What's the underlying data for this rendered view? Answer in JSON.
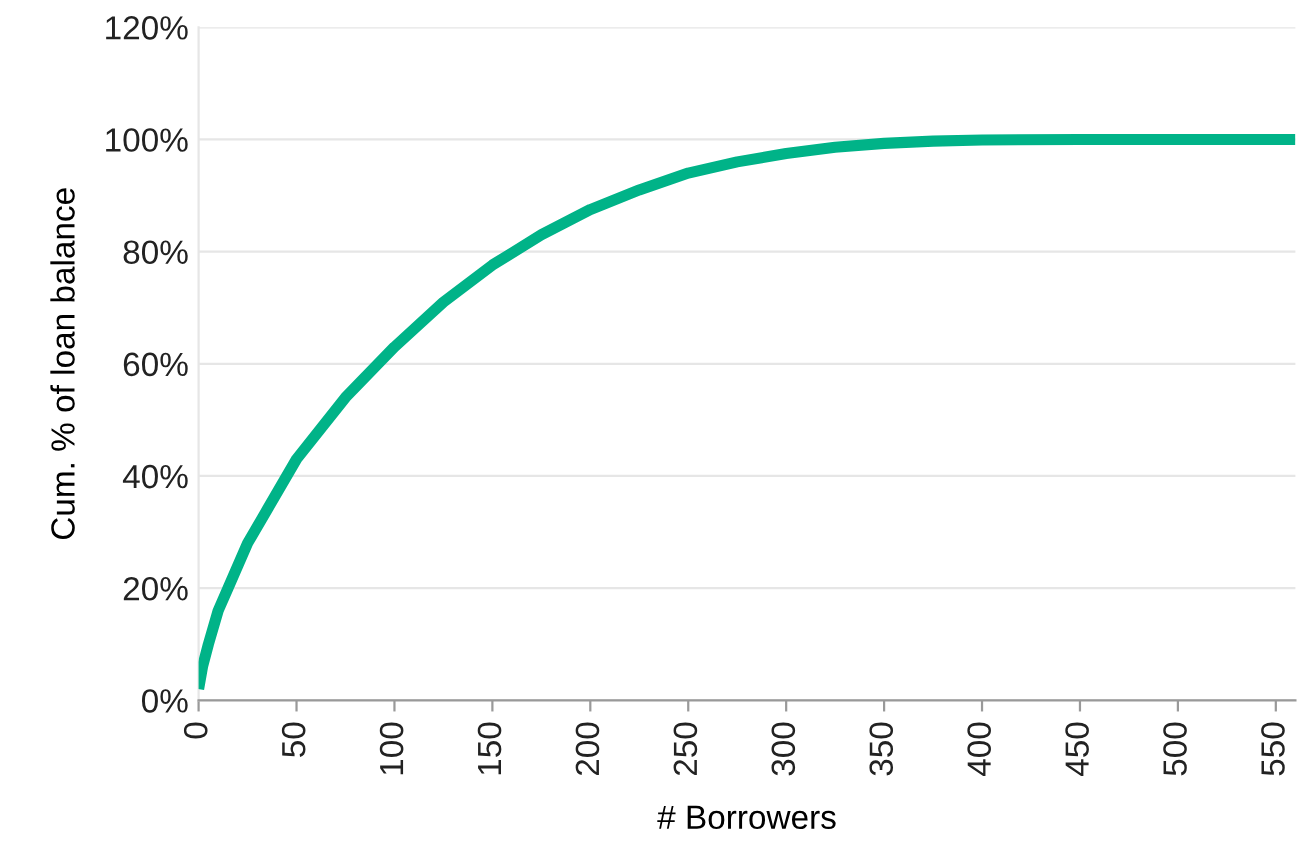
{
  "chart_data": {
    "type": "line",
    "xlabel": "# Borrowers",
    "ylabel": "Cum. % of loan balance",
    "series": [
      {
        "color": "#00b388",
        "x": [
          0,
          2,
          5,
          10,
          15,
          25,
          35,
          50,
          75,
          100,
          125,
          150,
          175,
          200,
          225,
          250,
          275,
          300,
          325,
          350,
          375,
          400,
          450,
          500,
          560
        ],
        "values": [
          2,
          6,
          10,
          16,
          20,
          28,
          34,
          43,
          54,
          63,
          71,
          77.6,
          83,
          87.5,
          91,
          94,
          96,
          97.5,
          98.6,
          99.3,
          99.7,
          99.9,
          100,
          100,
          100
        ]
      }
    ],
    "xlim": [
      0,
      560
    ],
    "xticks": [
      0,
      50,
      100,
      150,
      200,
      250,
      300,
      350,
      400,
      450,
      500,
      550
    ],
    "ylim": [
      0,
      120
    ],
    "yticks": [
      {
        "value": 0,
        "label": "0%"
      },
      {
        "value": 20,
        "label": "20%"
      },
      {
        "value": 40,
        "label": "40%"
      },
      {
        "value": 60,
        "label": "60%"
      },
      {
        "value": 80,
        "label": "80%"
      },
      {
        "value": 100,
        "label": "100%"
      },
      {
        "value": 120,
        "label": "120%"
      }
    ],
    "grid": "y",
    "marker": "none",
    "line_style": "solid"
  }
}
